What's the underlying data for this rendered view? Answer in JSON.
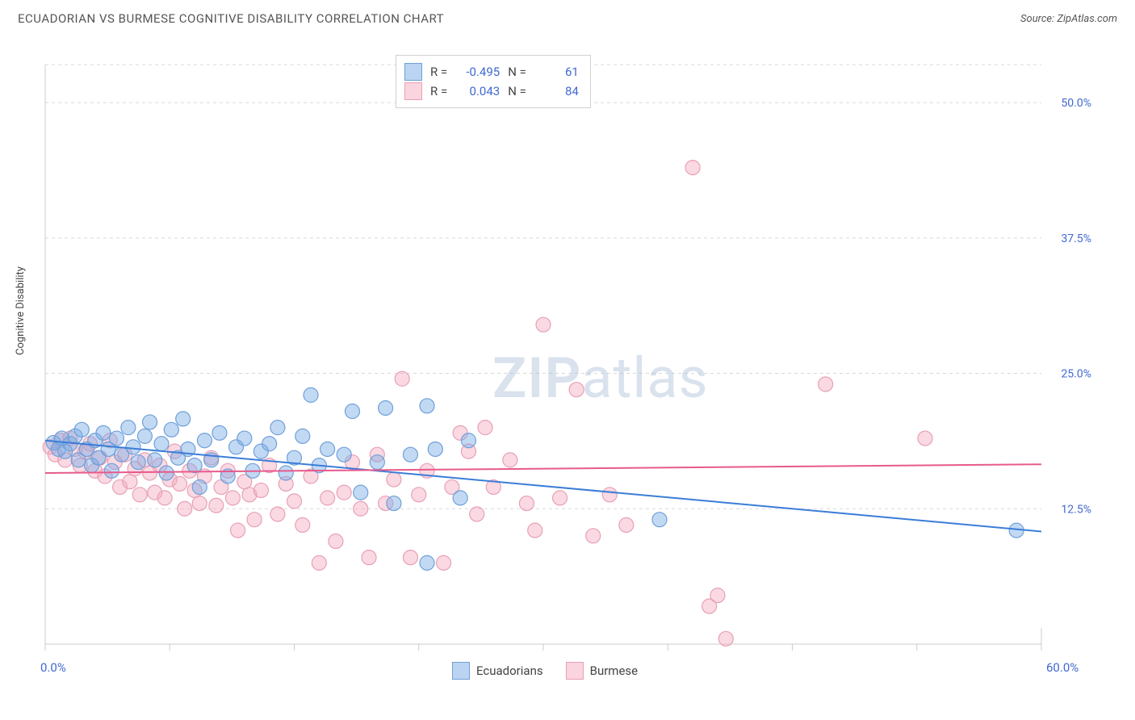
{
  "title": "ECUADORIAN VS BURMESE COGNITIVE DISABILITY CORRELATION CHART",
  "source_label": "Source: ",
  "source_value": "ZipAtlas.com",
  "y_axis_label": "Cognitive Disability",
  "watermark_a": "ZIP",
  "watermark_b": "atlas",
  "chart": {
    "type": "scatter",
    "xlim": [
      0,
      60
    ],
    "ylim": [
      0,
      55
    ],
    "x_tick_positions": [
      0,
      7.5,
      15,
      22.5,
      30,
      37.5,
      45,
      52.5,
      60
    ],
    "x_tick_labels_shown": {
      "0": "0.0%",
      "60": "60.0%"
    },
    "y_grid": [
      12.5,
      25.0,
      37.5,
      50.0
    ],
    "y_grid_labels": [
      "12.5%",
      "25.0%",
      "37.5%",
      "50.0%"
    ],
    "top_grid_y": 53.5,
    "marker_radius": 9,
    "background_color": "#ffffff",
    "grid_color": "#d9d9d9",
    "axis_color": "#cccccc",
    "tick_label_color": "#4169d1",
    "series": [
      {
        "name": "Ecuadorians",
        "color_fill": "rgba(120,170,230,0.45)",
        "color_stroke": "#6fa0d8",
        "trend_color": "#3b7dd8",
        "R": "-0.495",
        "N": "61",
        "trend": {
          "x1": 0,
          "y1": 18.8,
          "x2": 60,
          "y2": 10.4
        },
        "points": [
          [
            0.5,
            18.6
          ],
          [
            0.8,
            18.0
          ],
          [
            1.0,
            19.0
          ],
          [
            1.2,
            17.8
          ],
          [
            1.5,
            18.5
          ],
          [
            1.8,
            19.2
          ],
          [
            2.0,
            17.0
          ],
          [
            2.2,
            19.8
          ],
          [
            2.5,
            18.0
          ],
          [
            2.8,
            16.5
          ],
          [
            3.0,
            18.8
          ],
          [
            3.2,
            17.2
          ],
          [
            3.5,
            19.5
          ],
          [
            3.8,
            18.0
          ],
          [
            4.0,
            16.0
          ],
          [
            4.3,
            19.0
          ],
          [
            4.6,
            17.5
          ],
          [
            5.0,
            20.0
          ],
          [
            5.3,
            18.2
          ],
          [
            5.6,
            16.8
          ],
          [
            6.0,
            19.2
          ],
          [
            6.3,
            20.5
          ],
          [
            6.6,
            17.0
          ],
          [
            7.0,
            18.5
          ],
          [
            7.3,
            15.8
          ],
          [
            7.6,
            19.8
          ],
          [
            8.0,
            17.2
          ],
          [
            8.3,
            20.8
          ],
          [
            8.6,
            18.0
          ],
          [
            9.0,
            16.5
          ],
          [
            9.3,
            14.5
          ],
          [
            9.6,
            18.8
          ],
          [
            10.0,
            17.0
          ],
          [
            10.5,
            19.5
          ],
          [
            11.0,
            15.5
          ],
          [
            11.5,
            18.2
          ],
          [
            12.0,
            19.0
          ],
          [
            12.5,
            16.0
          ],
          [
            13.0,
            17.8
          ],
          [
            13.5,
            18.5
          ],
          [
            14.0,
            20.0
          ],
          [
            14.5,
            15.8
          ],
          [
            15.0,
            17.2
          ],
          [
            15.5,
            19.2
          ],
          [
            16.0,
            23.0
          ],
          [
            16.5,
            16.5
          ],
          [
            17.0,
            18.0
          ],
          [
            18.0,
            17.5
          ],
          [
            18.5,
            21.5
          ],
          [
            19.0,
            14.0
          ],
          [
            20.0,
            16.8
          ],
          [
            20.5,
            21.8
          ],
          [
            21.0,
            13.0
          ],
          [
            22.0,
            17.5
          ],
          [
            23.0,
            22.0
          ],
          [
            23.5,
            18.0
          ],
          [
            25.0,
            13.5
          ],
          [
            25.5,
            18.8
          ],
          [
            23.0,
            7.5
          ],
          [
            37.0,
            11.5
          ],
          [
            58.5,
            10.5
          ]
        ]
      },
      {
        "name": "Burmese",
        "color_fill": "rgba(245,170,190,0.45)",
        "color_stroke": "#e8a0b5",
        "trend_color": "#e75a8c",
        "R": "0.043",
        "N": "84",
        "trend": {
          "x1": 0,
          "y1": 15.8,
          "x2": 60,
          "y2": 16.6
        },
        "points": [
          [
            0.3,
            18.2
          ],
          [
            0.6,
            17.5
          ],
          [
            0.9,
            18.8
          ],
          [
            1.2,
            17.0
          ],
          [
            1.5,
            19.0
          ],
          [
            1.8,
            18.0
          ],
          [
            2.1,
            16.5
          ],
          [
            2.4,
            17.8
          ],
          [
            2.7,
            18.5
          ],
          [
            3.0,
            16.0
          ],
          [
            3.3,
            17.2
          ],
          [
            3.6,
            15.5
          ],
          [
            3.9,
            18.8
          ],
          [
            4.2,
            16.8
          ],
          [
            4.5,
            14.5
          ],
          [
            4.8,
            17.5
          ],
          [
            5.1,
            15.0
          ],
          [
            5.4,
            16.2
          ],
          [
            5.7,
            13.8
          ],
          [
            6.0,
            17.0
          ],
          [
            6.3,
            15.8
          ],
          [
            6.6,
            14.0
          ],
          [
            6.9,
            16.5
          ],
          [
            7.2,
            13.5
          ],
          [
            7.5,
            15.2
          ],
          [
            7.8,
            17.8
          ],
          [
            8.1,
            14.8
          ],
          [
            8.4,
            12.5
          ],
          [
            8.7,
            16.0
          ],
          [
            9.0,
            14.2
          ],
          [
            9.3,
            13.0
          ],
          [
            9.6,
            15.5
          ],
          [
            10.0,
            17.2
          ],
          [
            10.3,
            12.8
          ],
          [
            10.6,
            14.5
          ],
          [
            11.0,
            16.0
          ],
          [
            11.3,
            13.5
          ],
          [
            11.6,
            10.5
          ],
          [
            12.0,
            15.0
          ],
          [
            12.3,
            13.8
          ],
          [
            12.6,
            11.5
          ],
          [
            13.0,
            14.2
          ],
          [
            13.5,
            16.5
          ],
          [
            14.0,
            12.0
          ],
          [
            14.5,
            14.8
          ],
          [
            15.0,
            13.2
          ],
          [
            15.5,
            11.0
          ],
          [
            16.0,
            15.5
          ],
          [
            16.5,
            7.5
          ],
          [
            17.0,
            13.5
          ],
          [
            17.5,
            9.5
          ],
          [
            18.0,
            14.0
          ],
          [
            18.5,
            16.8
          ],
          [
            19.0,
            12.5
          ],
          [
            19.5,
            8.0
          ],
          [
            20.0,
            17.5
          ],
          [
            20.5,
            13.0
          ],
          [
            21.0,
            15.2
          ],
          [
            21.5,
            24.5
          ],
          [
            22.0,
            8.0
          ],
          [
            22.5,
            13.8
          ],
          [
            23.0,
            16.0
          ],
          [
            24.0,
            7.5
          ],
          [
            24.5,
            14.5
          ],
          [
            25.0,
            19.5
          ],
          [
            25.5,
            17.8
          ],
          [
            26.0,
            12.0
          ],
          [
            26.5,
            20.0
          ],
          [
            27.0,
            14.5
          ],
          [
            28.0,
            17.0
          ],
          [
            29.0,
            13.0
          ],
          [
            29.5,
            10.5
          ],
          [
            30.0,
            29.5
          ],
          [
            31.0,
            13.5
          ],
          [
            32.0,
            23.5
          ],
          [
            33.0,
            10.0
          ],
          [
            34.0,
            13.8
          ],
          [
            35.0,
            11.0
          ],
          [
            39.0,
            44.0
          ],
          [
            40.0,
            3.5
          ],
          [
            41.0,
            0.5
          ],
          [
            47.0,
            24.0
          ],
          [
            53.0,
            19.0
          ],
          [
            40.5,
            4.5
          ]
        ]
      }
    ]
  },
  "legend_top": {
    "R_label": "R =",
    "N_label": "N ="
  },
  "legend_bottom": {
    "items": [
      "Ecuadorians",
      "Burmese"
    ]
  }
}
